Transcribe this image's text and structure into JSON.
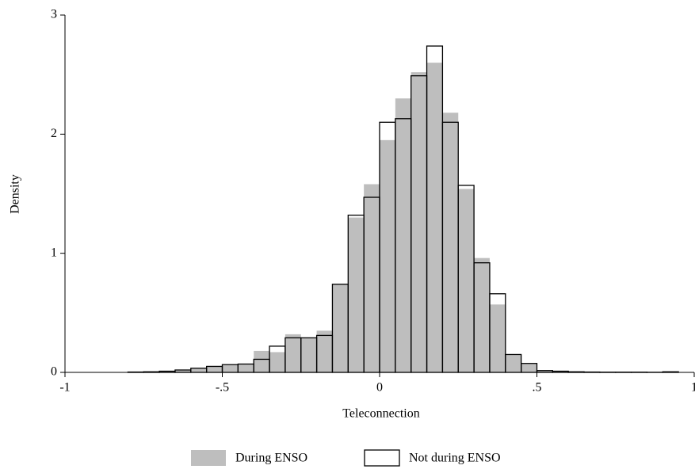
{
  "chart_data": {
    "type": "histogram",
    "xlabel": "Teleconnection",
    "ylabel": "Density",
    "bins": [
      -0.8,
      -0.75,
      -0.7,
      -0.65,
      -0.6,
      -0.55,
      -0.5,
      -0.45,
      -0.4,
      -0.35,
      -0.3,
      -0.25,
      -0.2,
      -0.15,
      -0.1,
      -0.05,
      0,
      0.05,
      0.1,
      0.15,
      0.2,
      0.25,
      0.3,
      0.35,
      0.4,
      0.45,
      0.5,
      0.55,
      0.6,
      0.65,
      0.7,
      0.75,
      0.8,
      0.85,
      0.9,
      0.95
    ],
    "series": [
      {
        "name": "During ENSO",
        "color": "#bebebe",
        "fill": true,
        "values": [
          0.003,
          0.005,
          0.01,
          0.02,
          0.035,
          0.055,
          0.06,
          0.07,
          0.18,
          0.17,
          0.32,
          0.29,
          0.35,
          0.74,
          1.3,
          1.58,
          1.95,
          2.3,
          2.52,
          2.6,
          2.18,
          1.54,
          0.96,
          0.57,
          0.15,
          0.07,
          0.015,
          0.01,
          0.005,
          0.003,
          0.002,
          0.002,
          0.002,
          0.001,
          0.005
        ]
      },
      {
        "name": "Not during ENSO",
        "color": "#000000",
        "fill": false,
        "values": [
          0.003,
          0.005,
          0.01,
          0.02,
          0.035,
          0.05,
          0.065,
          0.07,
          0.11,
          0.22,
          0.29,
          0.29,
          0.31,
          0.74,
          1.32,
          1.47,
          2.1,
          2.13,
          2.49,
          2.74,
          2.1,
          1.57,
          0.92,
          0.66,
          0.15,
          0.075,
          0.015,
          0.01,
          0.005,
          0.003,
          0.002,
          0.002,
          0.002,
          0.001,
          0.005
        ]
      }
    ],
    "xlim": [
      -1,
      1
    ],
    "ylim": [
      0,
      3
    ],
    "xticks": [
      -1,
      {
        "value": -0.5,
        "label": "-.5"
      },
      0,
      {
        "value": 0.5,
        "label": ".5"
      },
      1
    ],
    "yticks": [
      0,
      1,
      2,
      3
    ],
    "grid": false,
    "legend": "bottom"
  }
}
